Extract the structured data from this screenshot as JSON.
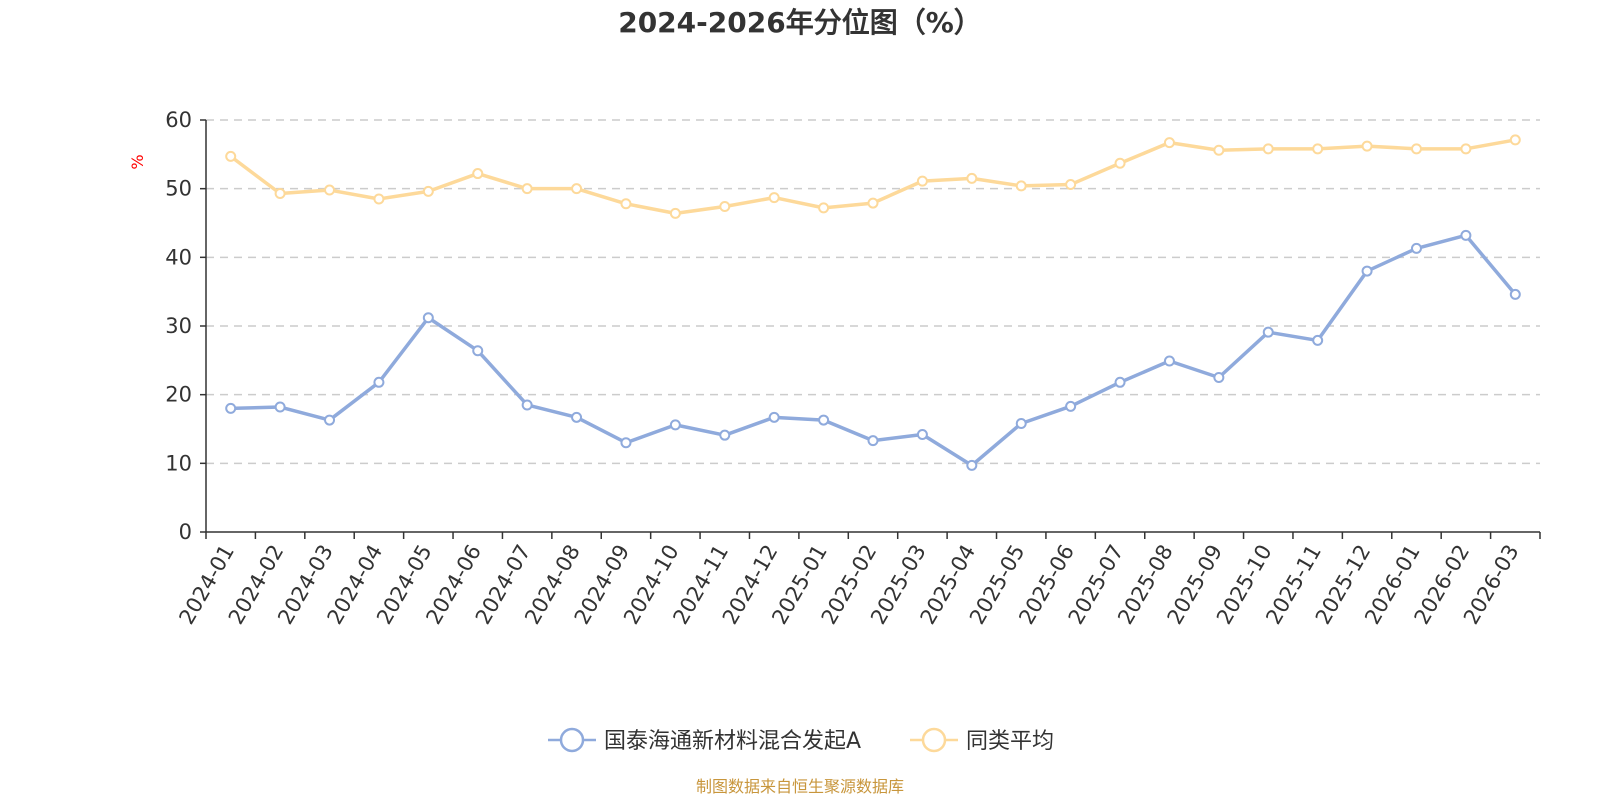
{
  "chart_data": {
    "type": "line",
    "title": "2024-2026年分位图（%）",
    "xlabel": "",
    "ylabel": "%",
    "ylim": [
      0,
      60
    ],
    "yticks": [
      0,
      10,
      20,
      30,
      40,
      50,
      60
    ],
    "grid": true,
    "legend_position": "bottom-center",
    "categories": [
      "2024-01",
      "2024-02",
      "2024-03",
      "2024-04",
      "2024-05",
      "2024-06",
      "2024-07",
      "2024-08",
      "2024-09",
      "2024-10",
      "2024-11",
      "2024-12",
      "2025-01",
      "2025-02",
      "2025-03",
      "2025-04",
      "2025-05",
      "2025-06",
      "2025-07",
      "2025-08",
      "2025-09",
      "2025-10",
      "2025-11",
      "2025-12",
      "2026-01",
      "2026-02",
      "2026-03"
    ],
    "series": [
      {
        "name": "国泰海通新材料混合发起A",
        "color": "#8faadc",
        "values": [
          18.0,
          18.2,
          16.3,
          21.8,
          31.2,
          26.4,
          18.5,
          16.7,
          13.0,
          15.6,
          14.1,
          16.7,
          16.3,
          13.3,
          14.2,
          9.7,
          15.8,
          18.3,
          21.8,
          24.9,
          22.5,
          29.1,
          27.9,
          38.0,
          41.3,
          43.2,
          34.6
        ]
      },
      {
        "name": "同类平均",
        "color": "#fdd99a",
        "values": [
          54.7,
          49.3,
          49.8,
          48.5,
          49.6,
          52.2,
          50.0,
          50.0,
          47.8,
          46.4,
          47.4,
          48.7,
          47.2,
          47.9,
          51.1,
          51.5,
          50.4,
          50.6,
          53.7,
          56.7,
          55.6,
          55.8,
          55.8,
          56.2,
          55.8,
          55.8,
          57.1
        ]
      }
    ]
  },
  "source_text": "制图数据来自恒生聚源数据库"
}
